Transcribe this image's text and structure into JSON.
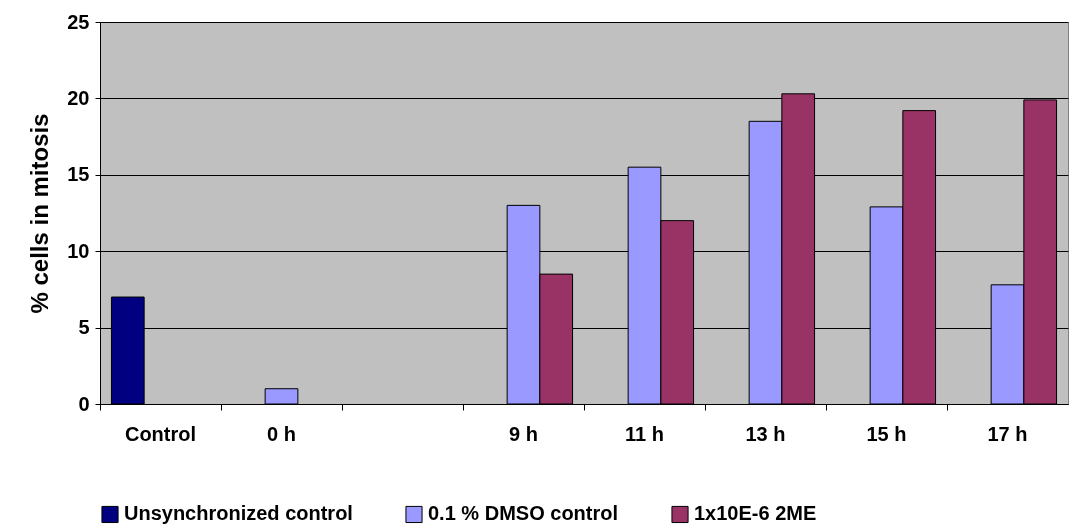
{
  "chart_data": {
    "type": "bar",
    "ylabel": "% cells in mitosis",
    "categories": [
      "Control",
      "0 h",
      null,
      "9 h",
      "11 h",
      "13 h",
      "15 h",
      "17 h"
    ],
    "series": [
      {
        "name": "Unsynchronized control",
        "color": "#000080",
        "values": [
          7.0,
          null,
          null,
          null,
          null,
          null,
          null,
          null
        ]
      },
      {
        "name": "0.1 % DMSO control",
        "color": "#9999ff",
        "values": [
          null,
          1.0,
          null,
          13.0,
          15.5,
          18.5,
          12.9,
          7.8
        ]
      },
      {
        "name": "1x10E-6 2ME",
        "color": "#993366",
        "values": [
          null,
          null,
          null,
          8.5,
          12.0,
          20.3,
          19.2,
          19.9
        ]
      }
    ],
    "ylim": [
      0,
      25
    ],
    "yticks": [
      0,
      5,
      10,
      15,
      20,
      25
    ],
    "grid": "y",
    "legend": "bottom"
  }
}
